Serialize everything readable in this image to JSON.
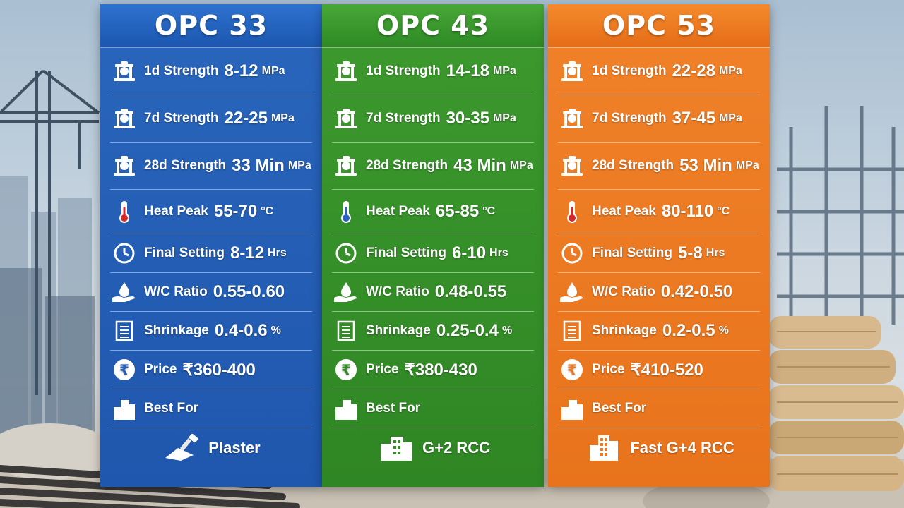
{
  "columns": [
    {
      "title": "OPC 33",
      "color": "#2461b6",
      "strength_1d": {
        "label": "1d Strength",
        "value": "8-12",
        "unit": "MPa"
      },
      "strength_7d": {
        "label": "7d Strength",
        "value": "22-25",
        "unit": "MPa"
      },
      "strength_28d": {
        "label": "28d Strength",
        "value": "33 Min",
        "unit": "MPa"
      },
      "heat_peak": {
        "label": "Heat Peak",
        "value": "55-70",
        "unit": "°C"
      },
      "final_setting": {
        "label": "Final Setting",
        "value": "8-12",
        "unit": "Hrs"
      },
      "wc_ratio": {
        "label": "W/C Ratio",
        "value": "0.55-0.60"
      },
      "shrinkage": {
        "label": "Shrinkage",
        "value": "0.4-0.6",
        "unit": "%"
      },
      "price": {
        "label": "Price",
        "value": "₹360-400"
      },
      "best_for_label": "Best For",
      "best_for_value": "Plaster",
      "best_for_icon": "trowel-icon"
    },
    {
      "title": "OPC 43",
      "color": "#348c27",
      "strength_1d": {
        "label": "1d Strength",
        "value": "14-18",
        "unit": "MPa"
      },
      "strength_7d": {
        "label": "7d Strength",
        "value": "30-35",
        "unit": "MPa"
      },
      "strength_28d": {
        "label": "28d Strength",
        "value": "43 Min",
        "unit": "MPa"
      },
      "heat_peak": {
        "label": "Heat Peak",
        "value": "65-85",
        "unit": "°C"
      },
      "final_setting": {
        "label": "Final Setting",
        "value": "6-10",
        "unit": "Hrs"
      },
      "wc_ratio": {
        "label": "W/C Ratio",
        "value": "0.48-0.55"
      },
      "shrinkage": {
        "label": "Shrinkage",
        "value": "0.25-0.4",
        "unit": "%"
      },
      "price": {
        "label": "Price",
        "value": "₹380-430"
      },
      "best_for_label": "Best For",
      "best_for_value": "G+2 RCC",
      "best_for_icon": "building-icon"
    },
    {
      "title": "OPC 53",
      "color": "#ec7a22",
      "strength_1d": {
        "label": "1d Strength",
        "value": "22-28",
        "unit": "MPa"
      },
      "strength_7d": {
        "label": "7d Strength",
        "value": "37-45",
        "unit": "MPa"
      },
      "strength_28d": {
        "label": "28d Strength",
        "value": "53 Min",
        "unit": "MPa"
      },
      "heat_peak": {
        "label": "Heat Peak",
        "value": "80-110",
        "unit": "°C"
      },
      "final_setting": {
        "label": "Final Setting",
        "value": "5-8",
        "unit": "Hrs"
      },
      "wc_ratio": {
        "label": "W/C Ratio",
        "value": "0.42-0.50"
      },
      "shrinkage": {
        "label": "Shrinkage",
        "value": "0.2-0.5",
        "unit": "%"
      },
      "price": {
        "label": "Price",
        "value": "₹410-520"
      },
      "best_for_label": "Best For",
      "best_for_value": "Fast G+4 RCC",
      "best_for_icon": "tall-building-icon"
    }
  ]
}
